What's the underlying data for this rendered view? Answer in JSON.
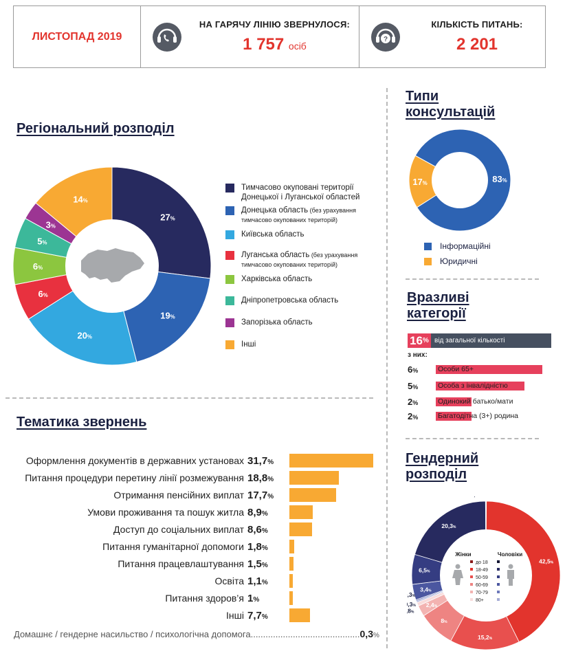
{
  "header": {
    "period": "ЛИСТОПАД 2019",
    "calls_label": "НА ГАРЯЧУ ЛІНІЮ ЗВЕРНУЛОСЯ:",
    "calls_value": "1 757",
    "calls_unit": "осіб",
    "questions_label": "КІЛЬКІСТЬ ПИТАНЬ:",
    "questions_value": "2 201",
    "icons": [
      "headset-phone-icon",
      "headset-question-icon"
    ]
  },
  "sections": {
    "regional": "Регіональний розподіл",
    "topics": "Тематика звернень",
    "consult_line1": "Типи",
    "consult_line2": "консультацій",
    "vuln_line1": "Вразливі",
    "vuln_line2": "категорії",
    "gender_line1": "Гендерний",
    "gender_line2": "розподіл"
  },
  "colors": {
    "red": "#e2342d",
    "navy": "#272a5f",
    "orange": "#f8a933",
    "pink": "#e6405c",
    "grey": "#465060"
  },
  "regional": {
    "center_icon": "ukraine-map-icon",
    "legend": [
      {
        "label": "Тимчасово окуповані території Донецької і Луганської областей",
        "note": ""
      },
      {
        "label": "Донецька область",
        "note": "(без урахування тимчасово окупованих територій)"
      },
      {
        "label": "Київська область",
        "note": ""
      },
      {
        "label": "Луганська область",
        "note": "(без урахування тимчасово окупованих територій)"
      },
      {
        "label": "Харківська область",
        "note": ""
      },
      {
        "label": "Дніпропетровська область",
        "note": ""
      },
      {
        "label": "Запорізька область",
        "note": ""
      },
      {
        "label": "Інші",
        "note": ""
      }
    ]
  },
  "topics": {
    "rows": [
      {
        "label": "Оформлення документів в державних установах",
        "value": "31,7"
      },
      {
        "label": "Питання процедури перетину лінії розмежування",
        "value": "18,8"
      },
      {
        "label": "Отримання пенсійних виплат",
        "value": "17,7"
      },
      {
        "label": "Умови проживання та пошук житла",
        "value": "8,9"
      },
      {
        "label": "Доступ до соціальних виплат",
        "value": "8,6"
      },
      {
        "label": "Питання гуманітарної допомоги",
        "value": "1,8"
      },
      {
        "label": "Питання працевлаштування",
        "value": "1,5"
      },
      {
        "label": "Освіта",
        "value": "1,1"
      },
      {
        "label": "Питання здоров’я",
        "value": "1"
      },
      {
        "label": "Інші",
        "value": "7,7"
      }
    ],
    "footnote_label": "Домашнє / гендерне насильство / психологічна допомога",
    "footnote_dots": "............................................",
    "footnote_value": "0,3",
    "pct": "%"
  },
  "consultations": {
    "legend": [
      "Інформаційні",
      "Юридичні"
    ]
  },
  "vulnerable": {
    "total": "16",
    "total_label": "від загальної кількості",
    "sub_label": "з них:",
    "rows": [
      {
        "pct": "6",
        "value": 6,
        "label": "Особи 65+"
      },
      {
        "pct": "5",
        "value": 5,
        "label": "Особа з інвалідністю"
      },
      {
        "pct": "2",
        "value": 2,
        "label": "Одинокий батько/мати"
      },
      {
        "pct": "2",
        "value": 2,
        "label": "Багатодітна (3+) родина"
      }
    ]
  },
  "gender": {
    "women_label": "Жінки",
    "men_label": "Чоловіки",
    "age_groups": [
      "до 18",
      "18-49",
      "50-59",
      "60-69",
      "70-79",
      "80+"
    ],
    "icons": [
      "woman-icon",
      "man-icon"
    ]
  },
  "chart_data": [
    {
      "type": "pie",
      "title": "Регіональний розподіл",
      "categories": [
        "Тимчасово окуповані території Донецької і Луганської областей",
        "Донецька область",
        "Київська область",
        "Луганська область",
        "Харківська область",
        "Дніпропетровська область",
        "Запорізька область",
        "Інші"
      ],
      "values": [
        27,
        19,
        20,
        6,
        6,
        5,
        3,
        14
      ],
      "labels": [
        "27",
        "19",
        "20",
        "6",
        "6",
        "5",
        "3",
        "14"
      ],
      "colors": [
        "#272a5f",
        "#2d63b3",
        "#33a8e0",
        "#e8313f",
        "#8cc63f",
        "#3cb89a",
        "#9c3593",
        "#f8a933"
      ],
      "unit": "%",
      "legend": "right"
    },
    {
      "type": "bar",
      "title": "Тематика звернень",
      "categories": [
        "Оформлення документів в державних установах",
        "Питання процедури перетину лінії розмежування",
        "Отримання пенсійних виплат",
        "Умови проживання та пошук житла",
        "Доступ до соціальних виплат",
        "Питання гуманітарної допомоги",
        "Питання працевлаштування",
        "Освіта",
        "Питання здоров’я",
        "Інші"
      ],
      "values": [
        31.7,
        18.8,
        17.7,
        8.9,
        8.6,
        1.8,
        1.5,
        1.1,
        1,
        7.7
      ],
      "unit": "%",
      "orientation": "horizontal"
    },
    {
      "type": "pie",
      "title": "Типи консультацій",
      "categories": [
        "Інформаційні",
        "Юридичні"
      ],
      "values": [
        83,
        17
      ],
      "labels": [
        "83",
        "17"
      ],
      "colors": [
        "#2d63b3",
        "#f8a933"
      ],
      "unit": "%",
      "legend": "bottom"
    },
    {
      "type": "bar",
      "title": "Вразливі категорії",
      "categories": [
        "Особи 65+",
        "Особа з інвалідністю",
        "Одинокий батько/мати",
        "Багатодітна (3+) родина"
      ],
      "values": [
        6,
        5,
        2,
        2
      ],
      "total": 16,
      "unit": "%",
      "orientation": "horizontal"
    },
    {
      "type": "pie",
      "title": "Гендерний розподіл",
      "series": [
        {
          "name": "Чоловіки",
          "categories": [
            "до 18",
            "18-49",
            "50-59",
            "60-69",
            "70-79",
            "80+"
          ],
          "values": [
            0.1,
            42.5,
            15.2,
            8,
            2.4,
            0.8
          ],
          "labels": [
            "0,1",
            "42,5",
            "15,2",
            "8",
            "2,4",
            "0,8"
          ]
        },
        {
          "name": "Жінки",
          "categories": [
            "до 18",
            "18-49",
            "50-59",
            "60-69",
            "70-79",
            "80+"
          ],
          "values": [
            0.1,
            20.3,
            6.5,
            3.4,
            0.3,
            0.3
          ],
          "labels": [
            "0,1",
            "20,3",
            "6,5",
            "3,4",
            "0,3",
            "0,3"
          ]
        }
      ],
      "colors_men": [
        "#8b1a1a",
        "#e2342d",
        "#e8504e",
        "#ee8482",
        "#f3b3b1",
        "#f8dcdb"
      ],
      "colors_women": [
        "#141634",
        "#272a5f",
        "#353d82",
        "#4b57a0",
        "#6d79ba",
        "#a5acd6"
      ],
      "unit": "%"
    }
  ]
}
